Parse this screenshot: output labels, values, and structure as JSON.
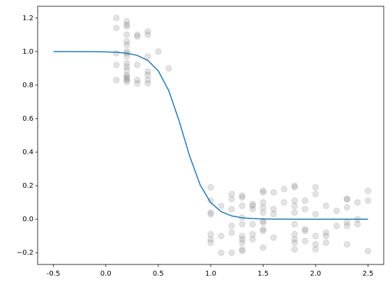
{
  "chart_data": {
    "type": "scatter",
    "xlim": [
      -0.65,
      2.65
    ],
    "ylim": [
      -0.27,
      1.27
    ],
    "xticks": [
      -0.5,
      {
        "value": 0,
        "label": "0.0"
      },
      0.5,
      {
        "value": 1,
        "label": "1.0"
      },
      1.5,
      {
        "value": 2,
        "label": "2.0"
      },
      2.5
    ],
    "yticks": [
      {
        "value": -0.2,
        "label": "−0.2"
      },
      {
        "value": 0,
        "label": "0.0"
      },
      0.2,
      0.4,
      0.6,
      0.8,
      {
        "value": 1,
        "label": "1.0"
      },
      1.2
    ],
    "series": [
      {
        "type": "scatter",
        "color": "#808080",
        "x": [
          0.1,
          0.1,
          0.1,
          0.1,
          0.1,
          0.2,
          0.2,
          0.2,
          0.2,
          0.2,
          0.2,
          0.2,
          0.2,
          0.2,
          0.2,
          0.2,
          0.2,
          0.2,
          0.2,
          0.2,
          0.2,
          0.2,
          0.3,
          0.3,
          0.3,
          0.3,
          0.3,
          0.4,
          0.4,
          0.4,
          0.4,
          0.4,
          0.4,
          0.4,
          0.5,
          0.6,
          1.0,
          1.0,
          1.0,
          1.0,
          1.0,
          1.0,
          1.0,
          1.1,
          1.1,
          1.1,
          1.2,
          1.2,
          1.2,
          1.2,
          1.2,
          1.2,
          1.3,
          1.3,
          1.3,
          1.3,
          1.3,
          1.3,
          1.3,
          1.3,
          1.3,
          1.3,
          1.4,
          1.4,
          1.4,
          1.4,
          1.4,
          1.4,
          1.5,
          1.5,
          1.5,
          1.5,
          1.5,
          1.5,
          1.5,
          1.5,
          1.5,
          1.5,
          1.6,
          1.6,
          1.6,
          1.6,
          1.7,
          1.7,
          1.8,
          1.8,
          1.8,
          1.8,
          1.8,
          1.8,
          1.8,
          1.8,
          1.8,
          1.8,
          1.9,
          1.9,
          1.9,
          1.9,
          1.9,
          2.0,
          2.0,
          2.0,
          2.0,
          2.0,
          2.0,
          2.1,
          2.1,
          2.1,
          2.1,
          2.2,
          2.2,
          2.3,
          2.3,
          2.3,
          2.3,
          2.3,
          2.3,
          2.4,
          2.4,
          2.4,
          2.5,
          2.5,
          2.5
        ],
        "values": [
          1.2,
          1.14,
          0.99,
          0.92,
          0.83,
          1.18,
          1.16,
          1.15,
          1.1,
          1.06,
          1.04,
          1.0,
          0.99,
          0.97,
          0.93,
          0.91,
          0.89,
          0.86,
          0.85,
          0.84,
          0.83,
          0.82,
          1.1,
          1.09,
          0.92,
          0.83,
          0.81,
          1.12,
          1.1,
          0.97,
          0.88,
          0.86,
          0.83,
          0.81,
          1.0,
          0.9,
          0.19,
          0.11,
          0.04,
          0.03,
          -0.09,
          -0.12,
          -0.14,
          0.08,
          -0.1,
          -0.2,
          0.15,
          0.12,
          0.06,
          -0.04,
          -0.08,
          -0.2,
          0.14,
          0.13,
          0.08,
          0.01,
          -0.03,
          -0.1,
          -0.12,
          -0.14,
          -0.18,
          -0.19,
          0.09,
          0.08,
          0.06,
          -0.03,
          -0.09,
          -0.12,
          0.17,
          0.16,
          0.1,
          0.07,
          0.04,
          -0.01,
          -0.02,
          -0.06,
          -0.07,
          -0.17,
          0.16,
          0.06,
          0.03,
          -0.11,
          0.18,
          0.1,
          0.2,
          0.19,
          0.11,
          0.08,
          0.04,
          -0.03,
          -0.09,
          -0.12,
          -0.14,
          -0.18,
          0.11,
          0.06,
          -0.06,
          -0.07,
          -0.13,
          0.19,
          0.15,
          0.03,
          -0.1,
          -0.15,
          -0.18,
          0.08,
          -0.08,
          -0.1,
          -0.14,
          0.05,
          -0.04,
          0.12,
          0.12,
          0.07,
          -0.02,
          -0.04,
          -0.15,
          0.1,
          0.0,
          -0.03,
          0.17,
          0.11,
          -0.19
        ]
      },
      {
        "type": "line",
        "color": "#1f77b4",
        "x": [
          -0.5,
          -0.4,
          -0.3,
          -0.2,
          -0.1,
          0.0,
          0.1,
          0.2,
          0.3,
          0.4,
          0.5,
          0.6,
          0.7,
          0.8,
          0.9,
          1.0,
          1.1,
          1.2,
          1.3,
          1.4,
          1.5,
          1.6,
          1.7,
          1.8,
          1.9,
          2.0,
          2.1,
          2.2,
          2.3,
          2.4,
          2.5
        ],
        "values": [
          1.0,
          1.0,
          0.9999,
          0.9997,
          0.9992,
          0.9981,
          0.9957,
          0.9899,
          0.9768,
          0.9473,
          0.885,
          0.767,
          0.584,
          0.375,
          0.204,
          0.099,
          0.045,
          0.0196,
          0.0085,
          0.0037,
          0.0016,
          0.0007,
          0.0003,
          0.0001,
          0.0,
          0.0,
          0.0,
          0.0,
          0.0,
          0.0,
          0.0
        ]
      }
    ]
  }
}
